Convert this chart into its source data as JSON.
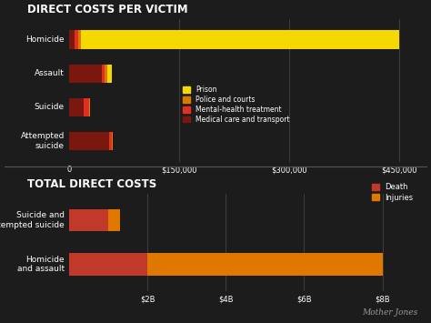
{
  "bg_color": "#1c1c1c",
  "text_color": "#ffffff",
  "title1": "DIRECT COSTS PER VICTIM",
  "title2": "TOTAL DIRECT COSTS",
  "chart1": {
    "categories": [
      "Attempted\nsuicide",
      "Suicide",
      "Assault",
      "Homicide"
    ],
    "medical_care": [
      55000,
      20000,
      45000,
      8000
    ],
    "mental_health": [
      3000,
      8000,
      3000,
      5000
    ],
    "police_courts": [
      2000,
      1000,
      4000,
      3000
    ],
    "prison": [
      0,
      0,
      7000,
      434000
    ],
    "xlim": [
      0,
      470000
    ],
    "xticks": [
      0,
      150000,
      300000,
      450000
    ],
    "xticklabels": [
      "0",
      "$150,000",
      "$300,000",
      "$450,000"
    ],
    "colors": {
      "prison": "#f5d800",
      "police_courts": "#d97b00",
      "mental_health": "#e03020",
      "medical_care": "#7a1810"
    }
  },
  "chart2": {
    "categories": [
      "Homicide\nand assault",
      "Suicide and\nattempted suicide"
    ],
    "death": [
      20.0,
      10.0
    ],
    "injuries": [
      60.0,
      3.0
    ],
    "xlim": [
      0,
      88
    ],
    "xticks": [
      20,
      40,
      60,
      80
    ],
    "xticklabels": [
      "$2B",
      "$4B",
      "$6B",
      "$8B"
    ],
    "colors": {
      "death": "#c0392b",
      "injuries": "#e07800"
    }
  },
  "legend1": {
    "labels": [
      "Prison",
      "Police and courts",
      "Mental-health treatment",
      "Medical care and transport"
    ],
    "colors": [
      "#f5d800",
      "#d97b00",
      "#e03020",
      "#7a1810"
    ]
  },
  "legend2": {
    "labels": [
      "Death",
      "Injuries"
    ],
    "colors": [
      "#c0392b",
      "#e07800"
    ]
  },
  "watermark": "Mother Jones",
  "watermark_color": "#999999"
}
